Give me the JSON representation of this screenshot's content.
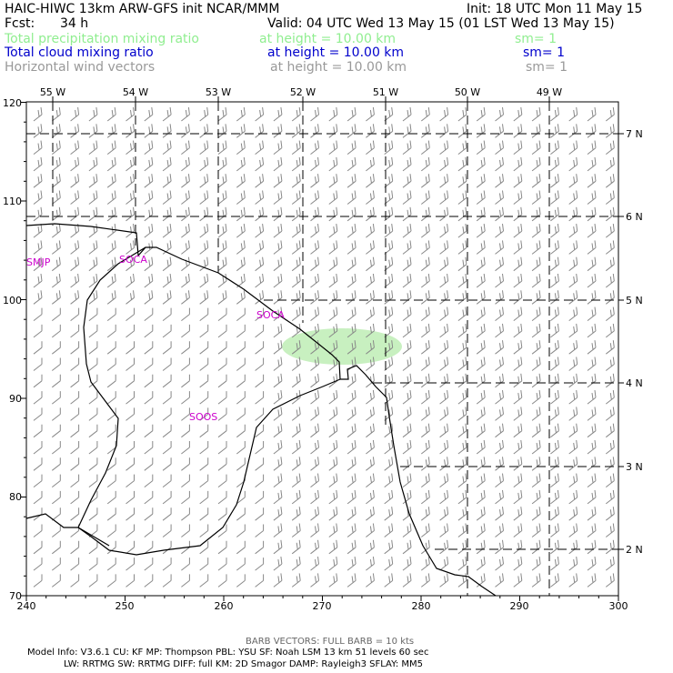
{
  "header": {
    "title": "HAIC-HIWC 13km ARW-GFS init   NCAR/MMM",
    "init": "Init: 18 UTC Mon 11 May 15",
    "fcst_label": "Fcst:",
    "fcst_value": "34 h",
    "valid": "Valid: 04 UTC Wed 13 May 15 (01 LST Wed 13 May 15)"
  },
  "fields": [
    {
      "name": "Total precipitation mixing ratio",
      "height": "at height = 10.00 km",
      "sm": "sm= 1",
      "color": "#90ee90"
    },
    {
      "name": "Total cloud mixing ratio",
      "height": "at height = 10.00 km",
      "sm": "sm= 1",
      "color": "#0000cc"
    },
    {
      "name": "Horizontal wind vectors",
      "height": "at height = 10.00 km",
      "sm": "sm= 1",
      "color": "#999999"
    }
  ],
  "map": {
    "x_ticks": [
      "240",
      "250",
      "260",
      "270",
      "280",
      "290",
      "300"
    ],
    "y_ticks": [
      "70",
      "80",
      "90",
      "100",
      "110",
      "120"
    ],
    "lon_labels": [
      "55 W",
      "54 W",
      "53 W",
      "52 W",
      "51 W",
      "50 W",
      "49 W"
    ],
    "lat_labels": [
      "7 N",
      "6 N",
      "5 N",
      "4 N",
      "3 N",
      "2 N"
    ],
    "stations": [
      "SMJP",
      "SOCA",
      "SOCA",
      "SOOS"
    ],
    "barb_color": "#888888",
    "precip_color": "#c8f0c0",
    "station_color": "#cc00cc"
  },
  "footer": {
    "barb_note": "BARB VECTORS:  FULL BARB = 10 kts",
    "model_line1": "Model Info: V3.6.1    CU: KF      MP: Thompson    PBL: YSU      SF: Noah LSM     13 km    51 levels   60 sec",
    "model_line2": "LW: RRTMG    SW: RRTMG   DIFF: full    KM: 2D Smagor DAMP: Rayleigh3   SFLAY: MM5"
  }
}
